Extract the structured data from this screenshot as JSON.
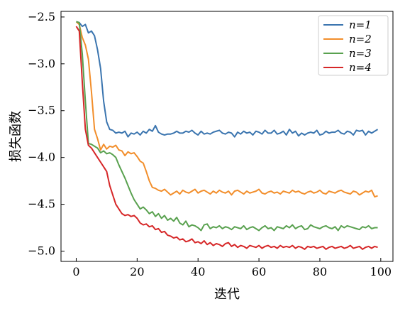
{
  "chart_data": {
    "type": "line",
    "xlabel": "迭代",
    "ylabel": "损失函数",
    "xlim": [
      -5,
      104
    ],
    "ylim": [
      -5.11,
      -2.44
    ],
    "x_ticks": [
      0,
      20,
      40,
      60,
      80,
      100
    ],
    "x_tick_labels": [
      "0",
      "20",
      "40",
      "60",
      "80",
      "100"
    ],
    "y_ticks": [
      -2.5,
      -3.0,
      -3.5,
      -4.0,
      -4.5,
      -5.0
    ],
    "y_tick_labels": [
      "−2.5",
      "−3.0",
      "−3.5",
      "−4.0",
      "−4.5",
      "−5.0"
    ],
    "grid": false,
    "legend_position": "top-right",
    "series": [
      {
        "name": "n=1",
        "color": "#3b75af",
        "x": [
          0,
          1,
          2,
          3,
          4,
          5,
          6,
          7,
          8,
          9,
          10,
          11,
          12,
          13,
          14,
          15,
          16,
          17,
          18,
          19,
          20,
          21,
          22,
          23,
          24,
          25,
          26,
          27,
          28,
          29,
          30,
          31,
          32,
          33,
          34,
          35,
          36,
          37,
          38,
          39,
          40,
          41,
          42,
          43,
          44,
          45,
          46,
          47,
          48,
          49,
          50,
          51,
          52,
          53,
          54,
          55,
          56,
          57,
          58,
          59,
          60,
          61,
          62,
          63,
          64,
          65,
          66,
          67,
          68,
          69,
          70,
          71,
          72,
          73,
          74,
          75,
          76,
          77,
          78,
          79,
          80,
          81,
          82,
          83,
          84,
          85,
          86,
          87,
          88,
          89,
          90,
          91,
          92,
          93,
          94,
          95,
          96,
          97,
          98,
          99
        ],
        "y": [
          -2.55,
          -2.56,
          -2.6,
          -2.58,
          -2.67,
          -2.65,
          -2.7,
          -2.85,
          -3.05,
          -3.4,
          -3.62,
          -3.7,
          -3.71,
          -3.74,
          -3.73,
          -3.74,
          -3.72,
          -3.78,
          -3.74,
          -3.75,
          -3.73,
          -3.76,
          -3.72,
          -3.74,
          -3.7,
          -3.72,
          -3.66,
          -3.73,
          -3.75,
          -3.76,
          -3.75,
          -3.75,
          -3.74,
          -3.72,
          -3.74,
          -3.74,
          -3.72,
          -3.73,
          -3.71,
          -3.74,
          -3.76,
          -3.72,
          -3.75,
          -3.74,
          -3.75,
          -3.73,
          -3.72,
          -3.71,
          -3.74,
          -3.75,
          -3.73,
          -3.74,
          -3.78,
          -3.73,
          -3.75,
          -3.72,
          -3.74,
          -3.73,
          -3.76,
          -3.72,
          -3.73,
          -3.75,
          -3.71,
          -3.74,
          -3.74,
          -3.71,
          -3.75,
          -3.74,
          -3.72,
          -3.76,
          -3.7,
          -3.74,
          -3.72,
          -3.77,
          -3.74,
          -3.76,
          -3.74,
          -3.73,
          -3.74,
          -3.71,
          -3.76,
          -3.75,
          -3.72,
          -3.74,
          -3.73,
          -3.73,
          -3.71,
          -3.74,
          -3.75,
          -3.72,
          -3.73,
          -3.76,
          -3.71,
          -3.72,
          -3.71,
          -3.76,
          -3.72,
          -3.74,
          -3.72,
          -3.7
        ]
      },
      {
        "name": "n=2",
        "color": "#f28e2b",
        "x": [
          0,
          1,
          2,
          3,
          4,
          5,
          6,
          7,
          8,
          9,
          10,
          11,
          12,
          13,
          14,
          15,
          16,
          17,
          18,
          19,
          20,
          21,
          22,
          23,
          24,
          25,
          26,
          27,
          28,
          29,
          30,
          31,
          32,
          33,
          34,
          35,
          36,
          37,
          38,
          39,
          40,
          41,
          42,
          43,
          44,
          45,
          46,
          47,
          48,
          49,
          50,
          51,
          52,
          53,
          54,
          55,
          56,
          57,
          58,
          59,
          60,
          61,
          62,
          63,
          64,
          65,
          66,
          67,
          68,
          69,
          70,
          71,
          72,
          73,
          74,
          75,
          76,
          77,
          78,
          79,
          80,
          81,
          82,
          83,
          84,
          85,
          86,
          87,
          88,
          89,
          90,
          91,
          92,
          93,
          94,
          95,
          96,
          97,
          98,
          99
        ],
        "y": [
          -2.55,
          -2.58,
          -2.72,
          -2.8,
          -2.95,
          -3.3,
          -3.7,
          -3.8,
          -3.92,
          -3.86,
          -3.91,
          -3.88,
          -3.89,
          -3.87,
          -3.92,
          -3.93,
          -3.98,
          -3.94,
          -3.96,
          -3.95,
          -3.99,
          -4.04,
          -4.06,
          -4.15,
          -4.25,
          -4.32,
          -4.33,
          -4.35,
          -4.36,
          -4.34,
          -4.37,
          -4.4,
          -4.38,
          -4.36,
          -4.39,
          -4.35,
          -4.37,
          -4.38,
          -4.36,
          -4.34,
          -4.38,
          -4.36,
          -4.35,
          -4.37,
          -4.39,
          -4.36,
          -4.38,
          -4.35,
          -4.37,
          -4.38,
          -4.36,
          -4.4,
          -4.36,
          -4.35,
          -4.37,
          -4.39,
          -4.36,
          -4.38,
          -4.37,
          -4.36,
          -4.34,
          -4.38,
          -4.39,
          -4.37,
          -4.36,
          -4.38,
          -4.37,
          -4.39,
          -4.36,
          -4.37,
          -4.38,
          -4.35,
          -4.37,
          -4.36,
          -4.38,
          -4.39,
          -4.37,
          -4.36,
          -4.38,
          -4.37,
          -4.35,
          -4.38,
          -4.39,
          -4.36,
          -4.37,
          -4.38,
          -4.36,
          -4.35,
          -4.37,
          -4.38,
          -4.39,
          -4.36,
          -4.37,
          -4.4,
          -4.38,
          -4.36,
          -4.37,
          -4.35,
          -4.42,
          -4.41
        ]
      },
      {
        "name": "n=3",
        "color": "#59a14f",
        "x": [
          0,
          1,
          2,
          3,
          4,
          5,
          6,
          7,
          8,
          9,
          10,
          11,
          12,
          13,
          14,
          15,
          16,
          17,
          18,
          19,
          20,
          21,
          22,
          23,
          24,
          25,
          26,
          27,
          28,
          29,
          30,
          31,
          32,
          33,
          34,
          35,
          36,
          37,
          38,
          39,
          40,
          41,
          42,
          43,
          44,
          45,
          46,
          47,
          48,
          49,
          50,
          51,
          52,
          53,
          54,
          55,
          56,
          57,
          58,
          59,
          60,
          61,
          62,
          63,
          64,
          65,
          66,
          67,
          68,
          69,
          70,
          71,
          72,
          73,
          74,
          75,
          76,
          77,
          78,
          79,
          80,
          81,
          82,
          83,
          84,
          85,
          86,
          87,
          88,
          89,
          90,
          91,
          92,
          93,
          94,
          95,
          96,
          97,
          98,
          99
        ],
        "y": [
          -2.55,
          -2.56,
          -2.9,
          -3.4,
          -3.85,
          -3.86,
          -3.88,
          -3.9,
          -3.95,
          -3.93,
          -3.96,
          -3.95,
          -3.97,
          -4.0,
          -4.08,
          -4.15,
          -4.22,
          -4.3,
          -4.38,
          -4.45,
          -4.5,
          -4.55,
          -4.53,
          -4.56,
          -4.6,
          -4.58,
          -4.63,
          -4.6,
          -4.65,
          -4.62,
          -4.67,
          -4.65,
          -4.68,
          -4.64,
          -4.7,
          -4.72,
          -4.68,
          -4.74,
          -4.72,
          -4.73,
          -4.75,
          -4.78,
          -4.72,
          -4.71,
          -4.76,
          -4.74,
          -4.75,
          -4.73,
          -4.76,
          -4.74,
          -4.75,
          -4.77,
          -4.74,
          -4.75,
          -4.76,
          -4.73,
          -4.77,
          -4.75,
          -4.74,
          -4.76,
          -4.78,
          -4.75,
          -4.73,
          -4.76,
          -4.75,
          -4.78,
          -4.74,
          -4.75,
          -4.76,
          -4.73,
          -4.75,
          -4.72,
          -4.76,
          -4.74,
          -4.73,
          -4.77,
          -4.76,
          -4.72,
          -4.74,
          -4.75,
          -4.76,
          -4.74,
          -4.73,
          -4.75,
          -4.76,
          -4.74,
          -4.78,
          -4.73,
          -4.75,
          -4.73,
          -4.74,
          -4.75,
          -4.76,
          -4.77,
          -4.74,
          -4.75,
          -4.73,
          -4.76,
          -4.75,
          -4.75
        ]
      },
      {
        "name": "n=4",
        "color": "#d62728",
        "x": [
          0,
          1,
          2,
          3,
          4,
          5,
          6,
          7,
          8,
          9,
          10,
          11,
          12,
          13,
          14,
          15,
          16,
          17,
          18,
          19,
          20,
          21,
          22,
          23,
          24,
          25,
          26,
          27,
          28,
          29,
          30,
          31,
          32,
          33,
          34,
          35,
          36,
          37,
          38,
          39,
          40,
          41,
          42,
          43,
          44,
          45,
          46,
          47,
          48,
          49,
          50,
          51,
          52,
          53,
          54,
          55,
          56,
          57,
          58,
          59,
          60,
          61,
          62,
          63,
          64,
          65,
          66,
          67,
          68,
          69,
          70,
          71,
          72,
          73,
          74,
          75,
          76,
          77,
          78,
          79,
          80,
          81,
          82,
          83,
          84,
          85,
          86,
          87,
          88,
          89,
          90,
          91,
          92,
          93,
          94,
          95,
          96,
          97,
          98,
          99
        ],
        "y": [
          -2.6,
          -2.65,
          -3.2,
          -3.7,
          -3.87,
          -3.9,
          -3.95,
          -4.0,
          -4.05,
          -4.1,
          -4.15,
          -4.3,
          -4.4,
          -4.5,
          -4.55,
          -4.6,
          -4.62,
          -4.61,
          -4.63,
          -4.62,
          -4.65,
          -4.7,
          -4.72,
          -4.71,
          -4.74,
          -4.73,
          -4.77,
          -4.76,
          -4.8,
          -4.79,
          -4.83,
          -4.84,
          -4.86,
          -4.85,
          -4.88,
          -4.87,
          -4.9,
          -4.89,
          -4.87,
          -4.91,
          -4.9,
          -4.92,
          -4.89,
          -4.93,
          -4.91,
          -4.94,
          -4.92,
          -4.93,
          -4.95,
          -4.92,
          -4.91,
          -4.95,
          -4.93,
          -4.96,
          -4.94,
          -4.95,
          -4.97,
          -4.94,
          -4.95,
          -4.96,
          -4.94,
          -4.97,
          -4.95,
          -4.94,
          -4.96,
          -4.95,
          -4.97,
          -4.94,
          -4.96,
          -4.95,
          -4.96,
          -4.94,
          -4.97,
          -4.95,
          -4.96,
          -4.98,
          -4.95,
          -4.96,
          -4.95,
          -4.97,
          -4.96,
          -4.95,
          -4.98,
          -4.96,
          -4.95,
          -4.97,
          -4.96,
          -4.95,
          -4.97,
          -4.96,
          -4.94,
          -4.97,
          -4.96,
          -4.95,
          -4.98,
          -4.96,
          -4.95,
          -4.97,
          -4.95,
          -4.96
        ]
      }
    ]
  }
}
